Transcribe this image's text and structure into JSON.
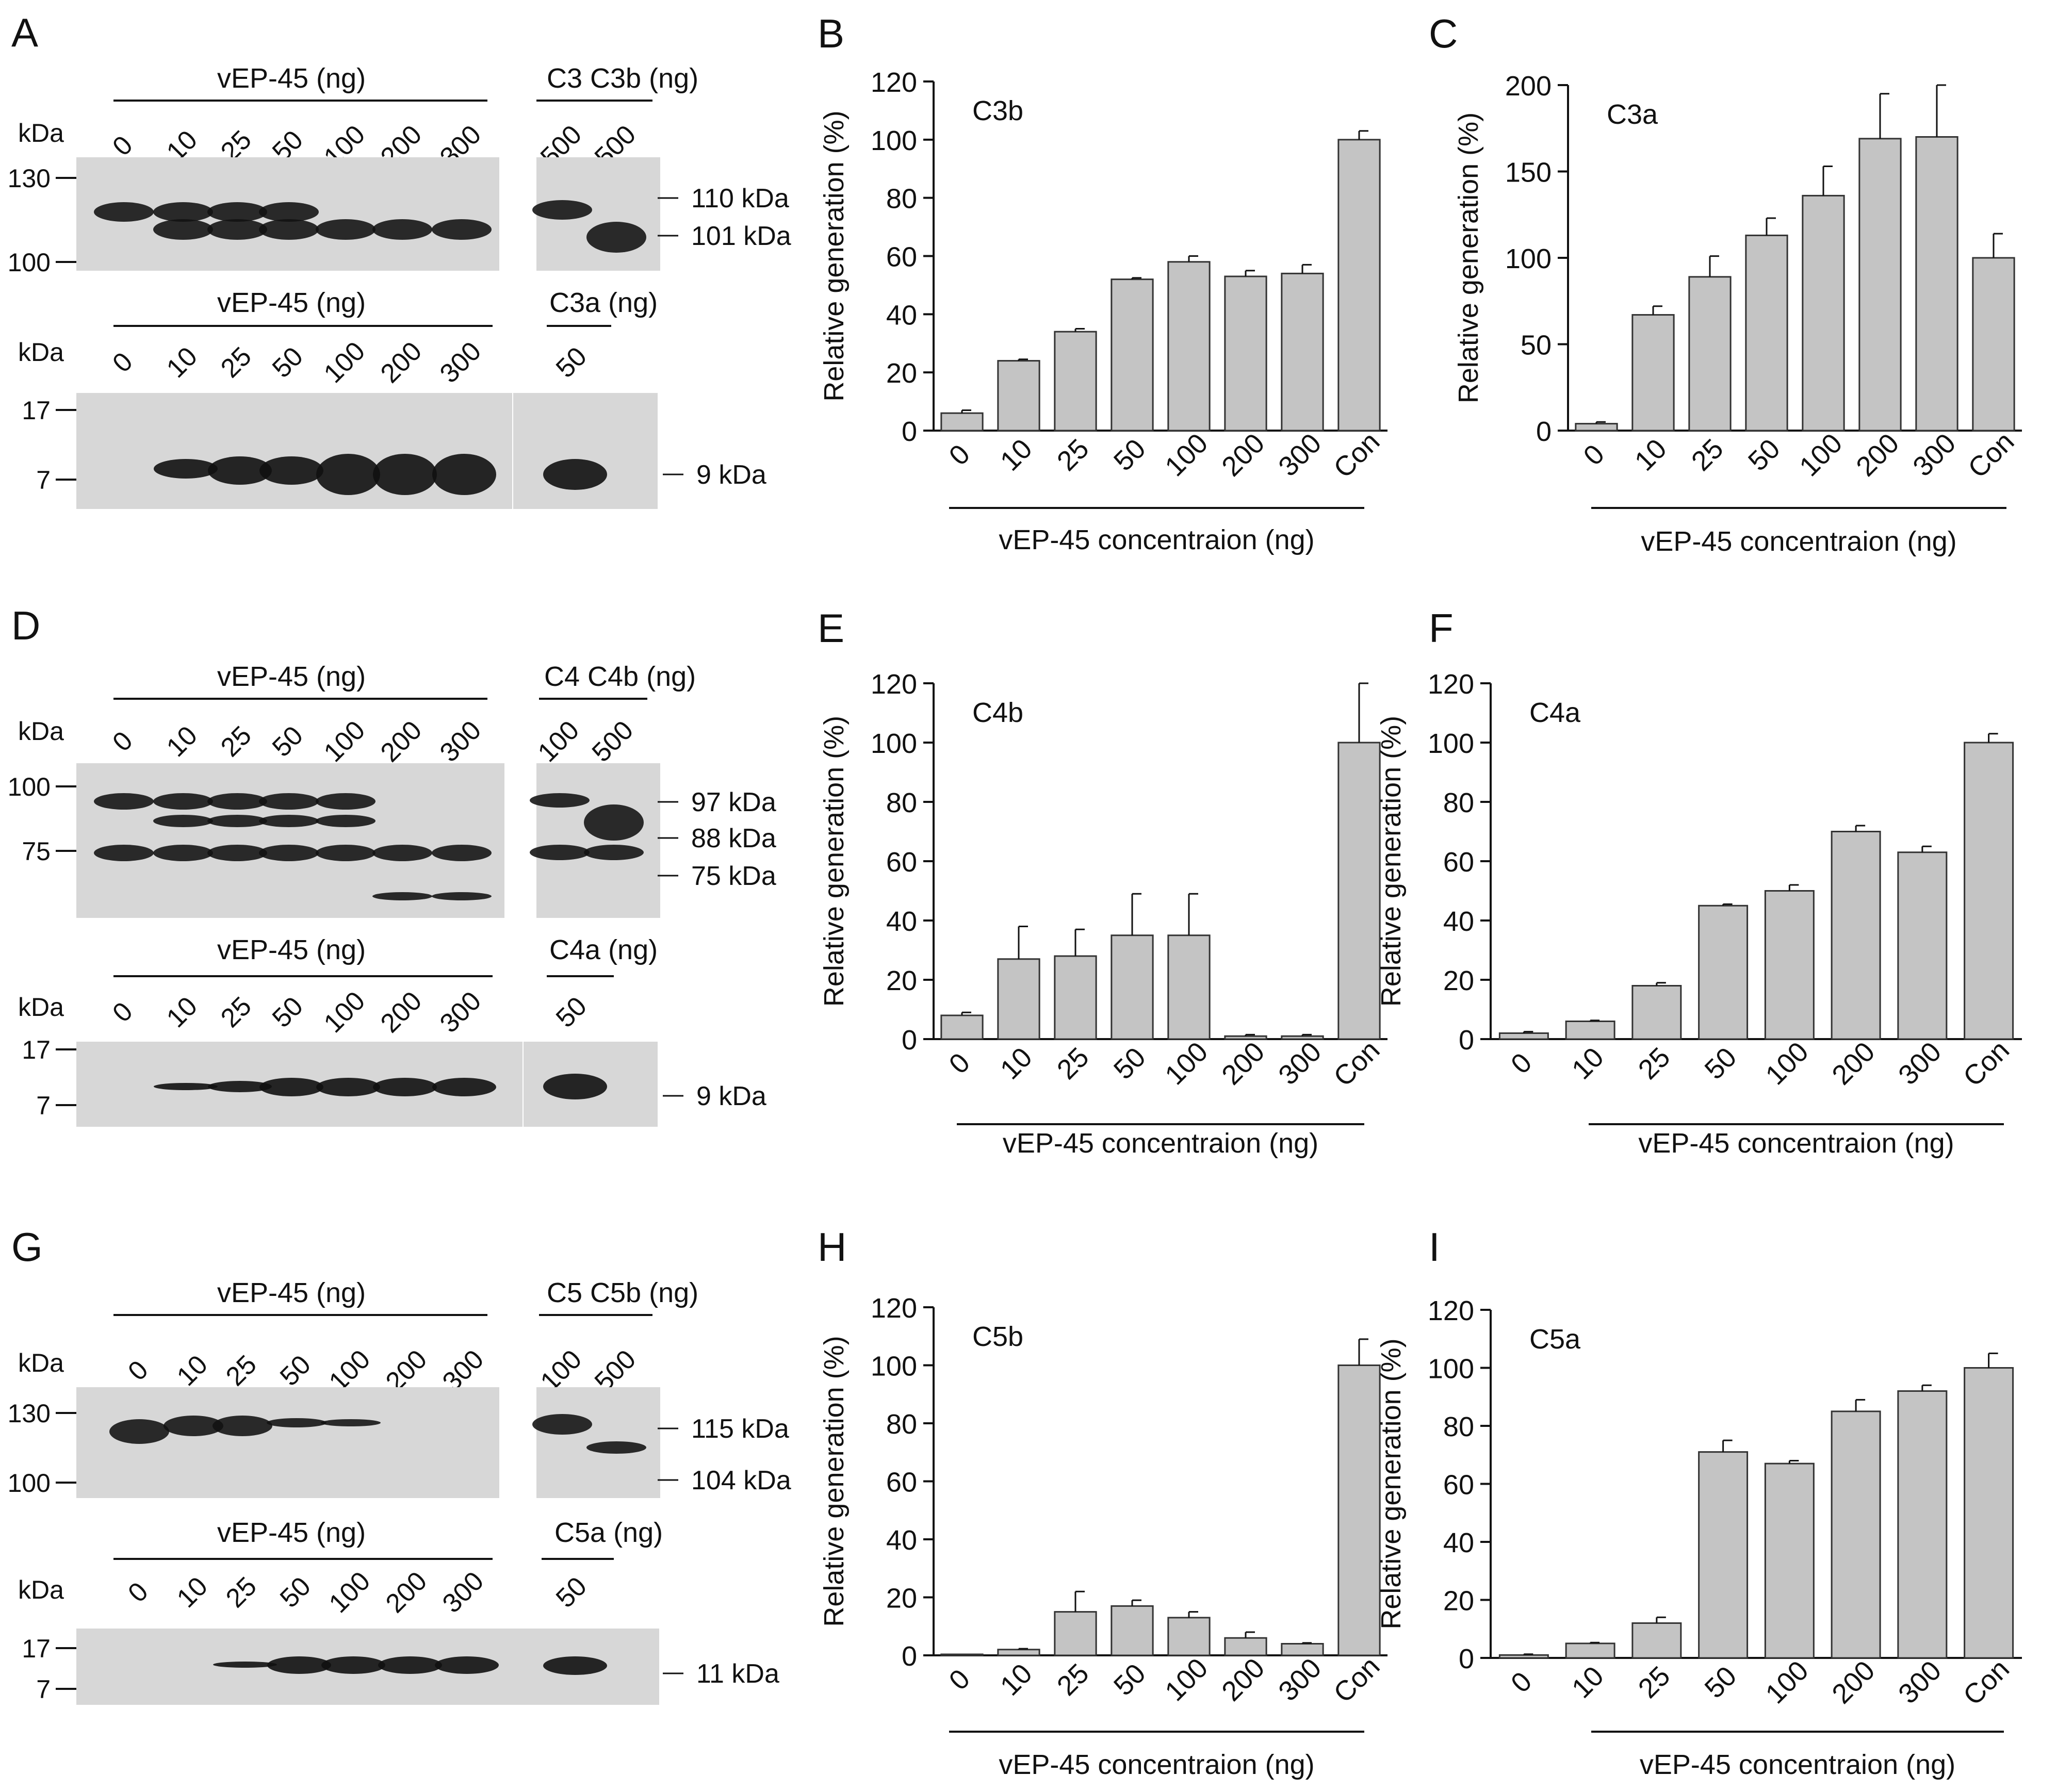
{
  "colors": {
    "bar_fill": "#c4c4c4",
    "bar_stroke": "#333333",
    "blot_bg": "#d7d7d7",
    "band": "#111111",
    "text": "#111111"
  },
  "common": {
    "ylabel": "Relative generation (%)",
    "xlabel": "vEP-45 concentraion (ng)",
    "categories": [
      "0",
      "10",
      "25",
      "50",
      "100",
      "200",
      "300",
      "Con"
    ]
  },
  "panels": {
    "A": {
      "letter": "A",
      "kda": "kDa",
      "sample_label": "vEP-45 (ng)",
      "lanes": [
        "0",
        "10",
        "25",
        "50",
        "100",
        "200",
        "300"
      ],
      "top": {
        "ctrl_header": "C3  C3b (ng)",
        "ctrl_lanes": [
          "500",
          "500"
        ],
        "markers": [
          "130",
          "100"
        ],
        "sizes": [
          "110 kDa",
          "101 kDa"
        ]
      },
      "bottom": {
        "ctrl_header": "C3a (ng)",
        "ctrl_lanes": [
          "50"
        ],
        "markers": [
          "17",
          "7"
        ],
        "sizes": [
          "9 kDa"
        ]
      }
    },
    "D": {
      "letter": "D",
      "kda": "kDa",
      "sample_label": "vEP-45 (ng)",
      "lanes": [
        "0",
        "10",
        "25",
        "50",
        "100",
        "200",
        "300"
      ],
      "top": {
        "ctrl_header": "C4   C4b (ng)",
        "ctrl_lanes": [
          "100",
          "500"
        ],
        "markers": [
          "100",
          "75"
        ],
        "sizes": [
          "97 kDa",
          "88 kDa",
          "75 kDa"
        ]
      },
      "bottom": {
        "ctrl_header": "C4a (ng)",
        "ctrl_lanes": [
          "50"
        ],
        "markers": [
          "17",
          "7"
        ],
        "sizes": [
          "9 kDa"
        ]
      }
    },
    "G": {
      "letter": "G",
      "kda": "kDa",
      "sample_label": "vEP-45 (ng)",
      "lanes": [
        "0",
        "10",
        "25",
        "50",
        "100",
        "200",
        "300"
      ],
      "top": {
        "ctrl_header": "C5   C5b (ng)",
        "ctrl_lanes": [
          "100",
          "500"
        ],
        "markers": [
          "130",
          "100"
        ],
        "sizes": [
          "115 kDa",
          "104 kDa"
        ]
      },
      "bottom": {
        "ctrl_header": "C5a (ng)",
        "ctrl_lanes": [
          "50"
        ],
        "markers": [
          "17",
          "7"
        ],
        "sizes": [
          "11 kDa"
        ]
      }
    }
  },
  "chart_data": [
    {
      "panel": "B",
      "type": "bar",
      "title": "C3b",
      "ylim": [
        0,
        120
      ],
      "yticks": [
        0,
        20,
        40,
        60,
        80,
        100,
        120
      ],
      "categories": [
        "0",
        "10",
        "25",
        "50",
        "100",
        "200",
        "300",
        "Con"
      ],
      "values": [
        6,
        24,
        34,
        52,
        58,
        53,
        54,
        100
      ],
      "errors": [
        1,
        0.5,
        1,
        0.5,
        2,
        2,
        3,
        3
      ]
    },
    {
      "panel": "C",
      "type": "bar",
      "title": "C3a",
      "ylim": [
        0,
        200
      ],
      "yticks": [
        0,
        50,
        100,
        150,
        200
      ],
      "categories": [
        "0",
        "10",
        "25",
        "50",
        "100",
        "200",
        "300",
        "Con"
      ],
      "values": [
        4,
        67,
        89,
        113,
        136,
        169,
        170,
        100
      ],
      "errors": [
        1,
        5,
        12,
        10,
        17,
        26,
        30,
        14
      ]
    },
    {
      "panel": "E",
      "type": "bar",
      "title": "C4b",
      "ylim": [
        0,
        120
      ],
      "yticks": [
        0,
        20,
        40,
        60,
        80,
        100,
        120
      ],
      "categories": [
        "0",
        "10",
        "25",
        "50",
        "100",
        "200",
        "300",
        "Con"
      ],
      "values": [
        8,
        27,
        28,
        35,
        35,
        1,
        1,
        100
      ],
      "errors": [
        1,
        11,
        9,
        14,
        14,
        0.5,
        0.5,
        20
      ]
    },
    {
      "panel": "F",
      "type": "bar",
      "title": "C4a",
      "ylim": [
        0,
        120
      ],
      "yticks": [
        0,
        20,
        40,
        60,
        80,
        100,
        120
      ],
      "categories": [
        "0",
        "10",
        "25",
        "50",
        "100",
        "200",
        "300",
        "Con"
      ],
      "values": [
        2,
        6,
        18,
        45,
        50,
        70,
        63,
        100
      ],
      "errors": [
        0.5,
        0.3,
        1,
        0.5,
        2,
        2,
        2,
        3
      ]
    },
    {
      "panel": "H",
      "type": "bar",
      "title": "C5b",
      "ylim": [
        0,
        120
      ],
      "yticks": [
        0,
        20,
        40,
        60,
        80,
        100,
        120
      ],
      "categories": [
        "0",
        "10",
        "25",
        "50",
        "100",
        "200",
        "300",
        "Con"
      ],
      "values": [
        0,
        2,
        15,
        17,
        13,
        6,
        4,
        100
      ],
      "errors": [
        0,
        0.3,
        7,
        2,
        2,
        2,
        0.3,
        9
      ]
    },
    {
      "panel": "I",
      "type": "bar",
      "title": "C5a",
      "ylim": [
        0,
        120
      ],
      "yticks": [
        0,
        20,
        40,
        60,
        80,
        100,
        120
      ],
      "categories": [
        "0",
        "10",
        "25",
        "50",
        "100",
        "200",
        "300",
        "Con"
      ],
      "values": [
        1,
        5,
        12,
        71,
        67,
        85,
        92,
        100
      ],
      "errors": [
        0.3,
        0.3,
        2,
        4,
        1,
        4,
        2,
        5
      ]
    }
  ]
}
